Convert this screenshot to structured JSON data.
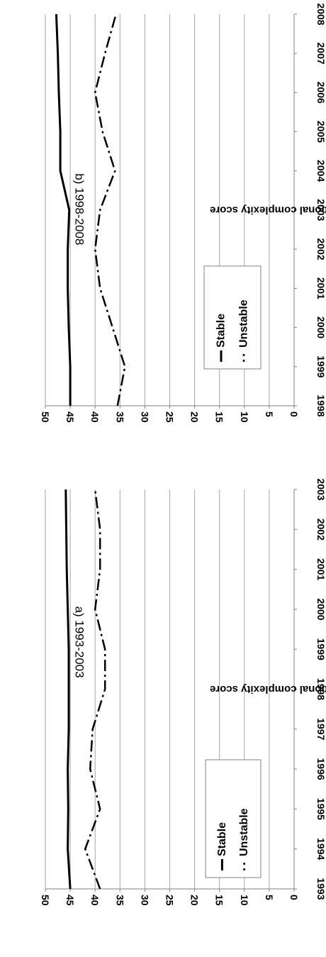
{
  "chart_data": [
    {
      "type": "line",
      "title": "a) 1993-2003",
      "ylabel": "Average occupational complexity score",
      "xlabel": "",
      "ylim": [
        0,
        50
      ],
      "yticks": [
        0,
        5,
        10,
        15,
        20,
        25,
        30,
        35,
        40,
        45,
        50
      ],
      "grid": true,
      "legend_position": "bottom-left",
      "categories": [
        "1993",
        "1994",
        "1995",
        "1996",
        "1997",
        "1998",
        "1999",
        "2000",
        "2001",
        "2002",
        "2003"
      ],
      "series": [
        {
          "name": "Stable",
          "style": "solid",
          "values": [
            45,
            45.5,
            45.4,
            45.5,
            45.3,
            45.3,
            45.3,
            45.5,
            45.7,
            45.8,
            45.9
          ]
        },
        {
          "name": "Unstable",
          "style": "dash-dot",
          "values": [
            39,
            42,
            39,
            41,
            40.5,
            38,
            38,
            40,
            39,
            39,
            40
          ]
        }
      ]
    },
    {
      "type": "line",
      "title": "b) 1998-2008",
      "ylabel": "Average occupational complexity score",
      "xlabel": "",
      "ylim": [
        0,
        50
      ],
      "yticks": [
        0,
        5,
        10,
        15,
        20,
        25,
        30,
        35,
        40,
        45,
        50
      ],
      "grid": true,
      "legend_position": "bottom-center",
      "categories": [
        "1998",
        "1999",
        "2000",
        "2001",
        "2002",
        "2003",
        "2004",
        "2005",
        "2006",
        "2007",
        "2008"
      ],
      "series": [
        {
          "name": "Stable",
          "style": "solid",
          "values": [
            45,
            45,
            45.3,
            45.5,
            45.5,
            45.2,
            47,
            47,
            47.3,
            47.5,
            47.8
          ]
        },
        {
          "name": "Unstable",
          "style": "dash-dot",
          "values": [
            35.5,
            34,
            36.5,
            39,
            40,
            39,
            36,
            38.5,
            40,
            38,
            35.8
          ]
        }
      ]
    }
  ]
}
